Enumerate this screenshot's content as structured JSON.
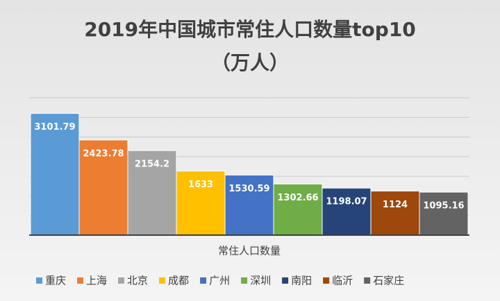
{
  "chart_data": {
    "type": "bar",
    "title": "2019年中国城市常住人口数量top10",
    "subtitle": "（万人）",
    "categories": [
      "常住人口数量"
    ],
    "series": [
      {
        "name": "重庆",
        "color": "#5b9bd5",
        "values": [
          3101.79
        ]
      },
      {
        "name": "上海",
        "color": "#ed7d31",
        "values": [
          2423.78
        ]
      },
      {
        "name": "北京",
        "color": "#a5a5a5",
        "values": [
          2154.2
        ]
      },
      {
        "name": "成都",
        "color": "#ffc000",
        "values": [
          1633
        ]
      },
      {
        "name": "广州",
        "color": "#4472c4",
        "values": [
          1530.59
        ]
      },
      {
        "name": "深圳",
        "color": "#70ad47",
        "values": [
          1302.66
        ]
      },
      {
        "name": "南阳",
        "color": "#264478",
        "values": [
          1198.07
        ]
      },
      {
        "name": "临沂",
        "color": "#9e480e",
        "values": [
          1124
        ]
      },
      {
        "name": "石家庄",
        "color": "#636363",
        "values": [
          1095.16
        ]
      }
    ],
    "ylim": [
      0,
      3500
    ],
    "yticks": [
      0,
      500,
      1000,
      1500,
      2000,
      2500,
      3000,
      3500
    ],
    "grid": true,
    "legend": "bottom"
  }
}
